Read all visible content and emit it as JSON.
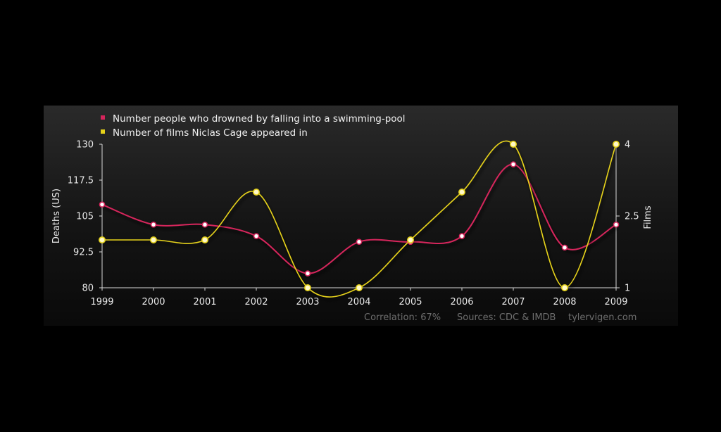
{
  "chart_data": {
    "type": "line",
    "x": [
      "1999",
      "2000",
      "2001",
      "2002",
      "2003",
      "2004",
      "2005",
      "2006",
      "2007",
      "2008",
      "2009"
    ],
    "series": [
      {
        "name": "Number people who drowned by falling into a swimming-pool",
        "color": "#d6255c",
        "axis": "left",
        "values": [
          109,
          102,
          102,
          98,
          85,
          96,
          96,
          98,
          123,
          94,
          102
        ]
      },
      {
        "name": "Number of films Niclas Cage appeared in",
        "color": "#e6d21a",
        "axis": "right",
        "values": [
          2,
          2,
          2,
          3,
          1,
          1,
          2,
          3,
          4,
          1,
          4
        ]
      }
    ],
    "y_left": {
      "label": "Deaths (US)",
      "ylim": [
        80,
        130
      ],
      "ticks": [
        "130",
        "117.5",
        "105",
        "92.5",
        "80"
      ]
    },
    "y_right": {
      "label": "Films",
      "ylim": [
        1,
        4
      ],
      "ticks": [
        "4",
        "2.5",
        "1"
      ]
    },
    "legend_position": "top-left",
    "grid": false
  },
  "footer": {
    "correlation": "Correlation: 67%",
    "sources": "Sources: CDC & IMDB",
    "site": "tylervigen.com"
  }
}
